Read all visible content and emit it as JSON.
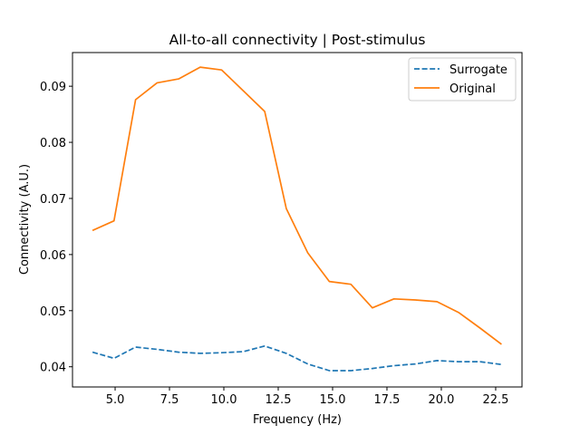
{
  "chart_data": {
    "type": "line",
    "title": "All-to-all connectivity | Post-stimulus",
    "xlabel": "Frequency (Hz)",
    "ylabel": "Connectivity (A.U.)",
    "xlim": [
      3.04,
      23.71
    ],
    "ylim": [
      0.0364,
      0.096
    ],
    "xticks": [
      5.0,
      7.5,
      10.0,
      12.5,
      15.0,
      17.5,
      20.0,
      22.5
    ],
    "xtick_labels": [
      "5.0",
      "7.5",
      "10.0",
      "12.5",
      "15.0",
      "17.5",
      "20.0",
      "22.5"
    ],
    "yticks": [
      0.04,
      0.05,
      0.06,
      0.07,
      0.08,
      0.09
    ],
    "ytick_labels": [
      "0.04",
      "0.05",
      "0.06",
      "0.07",
      "0.08",
      "0.09"
    ],
    "grid": false,
    "legend_position": "upper right",
    "x": [
      3.96,
      4.95,
      5.94,
      6.93,
      7.92,
      8.91,
      9.9,
      10.89,
      11.88,
      12.87,
      13.86,
      14.85,
      15.84,
      16.83,
      17.82,
      18.81,
      19.8,
      20.79,
      21.78,
      22.77
    ],
    "series": [
      {
        "name": "Surrogate",
        "color": "#1f77b4",
        "linestyle": "dashed",
        "values": [
          0.0426,
          0.0415,
          0.0435,
          0.0431,
          0.0426,
          0.0424,
          0.0425,
          0.0427,
          0.0437,
          0.0424,
          0.0405,
          0.0393,
          0.0393,
          0.0397,
          0.0402,
          0.0405,
          0.0411,
          0.0409,
          0.0409,
          0.0404
        ]
      },
      {
        "name": "Original",
        "color": "#ff7f0e",
        "linestyle": "solid",
        "values": [
          0.0643,
          0.066,
          0.0876,
          0.0906,
          0.0913,
          0.0934,
          0.0929,
          0.0892,
          0.0855,
          0.0682,
          0.0603,
          0.0552,
          0.0547,
          0.0505,
          0.0521,
          0.0519,
          0.0516,
          0.0497,
          0.0469,
          0.044
        ]
      }
    ]
  }
}
